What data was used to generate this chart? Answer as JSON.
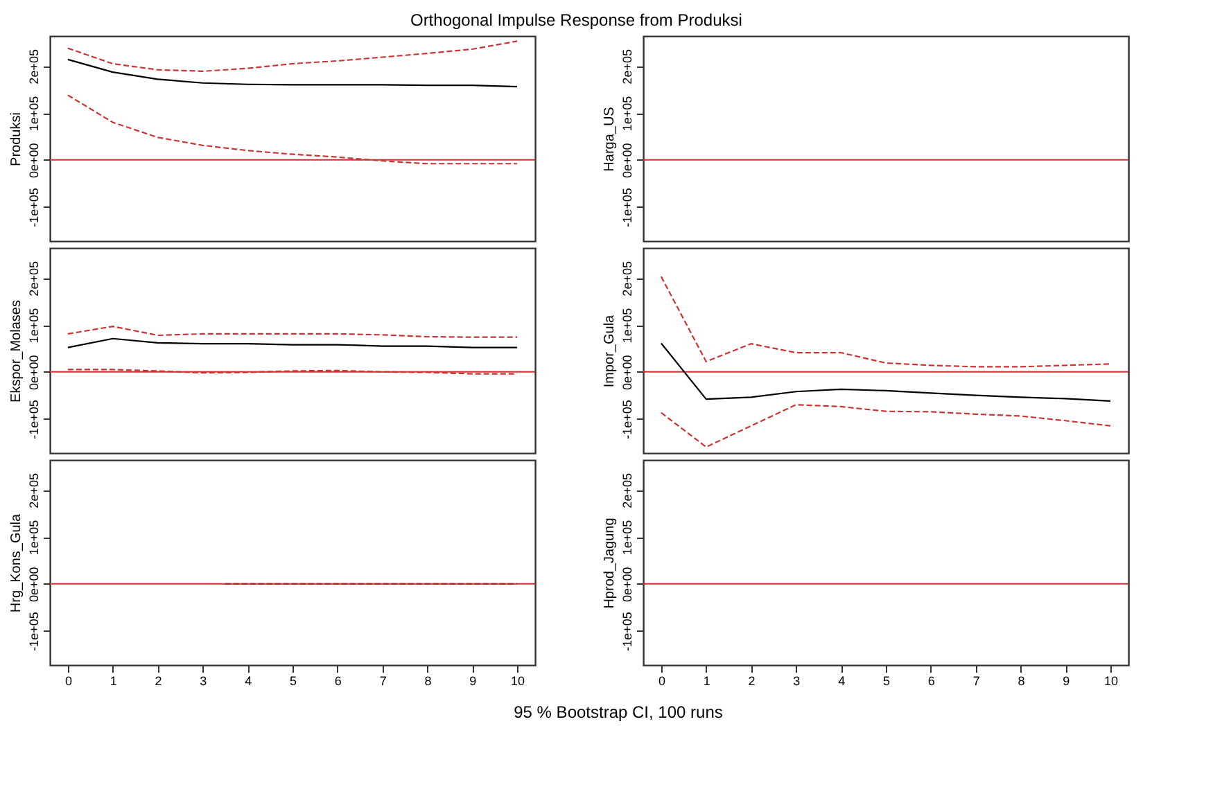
{
  "chart_data": [
    {
      "type": "line",
      "title": "Orthogonal Impulse Response from Produksi",
      "ylabel": "Produksi",
      "x": [
        0,
        1,
        2,
        3,
        4,
        5,
        6,
        7,
        8,
        9,
        10
      ],
      "xlim": [
        -0.4,
        10.4
      ],
      "xticks": [
        0,
        1,
        2,
        3,
        4,
        5,
        6,
        7,
        8,
        9,
        10
      ],
      "ylim": [
        -173000,
        264000
      ],
      "yticks": [
        {
          "value": -100000,
          "label": "-1e+05"
        },
        {
          "value": 0,
          "label": "0e+00"
        },
        {
          "value": 100000,
          "label": "1e+05"
        },
        {
          "value": 200000,
          "label": "2e+05"
        }
      ],
      "tick_labels": "y",
      "grid": false,
      "series": [
        {
          "color": "#000000",
          "line_style": "solid",
          "values": [
            214000,
            187000,
            172000,
            164000,
            161000,
            160000,
            160000,
            160000,
            159000,
            159000,
            156000
          ]
        },
        {
          "color": "#cc3333",
          "line_style": "dashed",
          "values": [
            238000,
            205000,
            192000,
            189000,
            195000,
            205000,
            211000,
            219000,
            227000,
            236000,
            253000
          ]
        },
        {
          "color": "#cc3333",
          "line_style": "dashed",
          "values": [
            138000,
            80000,
            48000,
            31000,
            20000,
            12000,
            6000,
            -2000,
            -8000,
            -8000,
            -8000
          ]
        }
      ],
      "ref_lines": [
        {
          "axis": "y",
          "value": 0,
          "color": "#cc3333"
        }
      ]
    },
    {
      "type": "line",
      "ylabel": "Harga_US",
      "xlim": [
        -0.4,
        10.4
      ],
      "xticks": [
        0,
        1,
        2,
        3,
        4,
        5,
        6,
        7,
        8,
        9,
        10
      ],
      "ylim": [
        -173000,
        264000
      ],
      "yticks": [
        {
          "value": -100000,
          "label": "-1e+05"
        },
        {
          "value": 0,
          "label": "0e+00"
        },
        {
          "value": 100000,
          "label": "1e+05"
        },
        {
          "value": 200000,
          "label": "2e+05"
        }
      ],
      "tick_labels": "y",
      "grid": false,
      "ref_lines": [
        {
          "axis": "y",
          "value": 0,
          "color": "#cc3333"
        }
      ]
    },
    {
      "type": "line",
      "ylabel": "Ekspor_Molases",
      "x": [
        0,
        1,
        2,
        3,
        4,
        5,
        6,
        7,
        8,
        9,
        10
      ],
      "xlim": [
        -0.4,
        10.4
      ],
      "xticks": [
        0,
        1,
        2,
        3,
        4,
        5,
        6,
        7,
        8,
        9,
        10
      ],
      "ylim": [
        -173000,
        264000
      ],
      "yticks": [
        {
          "value": -100000,
          "label": "-1e+05"
        },
        {
          "value": 0,
          "label": "0e+00"
        },
        {
          "value": 100000,
          "label": "1e+05"
        },
        {
          "value": 200000,
          "label": "2e+05"
        }
      ],
      "tick_labels": "y",
      "grid": false,
      "series": [
        {
          "color": "#000000",
          "line_style": "solid",
          "values": [
            52000,
            71000,
            62000,
            60000,
            60000,
            58000,
            58000,
            55000,
            55000,
            52000,
            52000
          ]
        },
        {
          "color": "#cc3333",
          "line_style": "dashed",
          "values": [
            81000,
            97000,
            78000,
            81000,
            81000,
            81000,
            81000,
            79000,
            75000,
            74000,
            74000
          ]
        },
        {
          "color": "#cc3333",
          "line_style": "dashed",
          "values": [
            5000,
            5000,
            2000,
            -2000,
            -1000,
            2000,
            3000,
            0,
            -1000,
            -4000,
            -4000
          ]
        }
      ],
      "ref_lines": [
        {
          "axis": "y",
          "value": 0,
          "color": "#cc3333"
        }
      ]
    },
    {
      "type": "line",
      "ylabel": "Impor_Gula",
      "x": [
        0,
        1,
        2,
        3,
        4,
        5,
        6,
        7,
        8,
        9,
        10
      ],
      "xlim": [
        -0.4,
        10.4
      ],
      "xticks": [
        0,
        1,
        2,
        3,
        4,
        5,
        6,
        7,
        8,
        9,
        10
      ],
      "ylim": [
        -173000,
        264000
      ],
      "yticks": [
        {
          "value": -100000,
          "label": "-1e+05"
        },
        {
          "value": 0,
          "label": "0e+00"
        },
        {
          "value": 100000,
          "label": "1e+05"
        },
        {
          "value": 200000,
          "label": "2e+05"
        }
      ],
      "tick_labels": "y",
      "grid": false,
      "series": [
        {
          "color": "#000000",
          "line_style": "solid",
          "values": [
            61000,
            -58000,
            -54000,
            -42000,
            -37000,
            -40000,
            -45000,
            -50000,
            -54000,
            -57000,
            -62000
          ]
        },
        {
          "color": "#cc3333",
          "line_style": "dashed",
          "values": [
            203000,
            22000,
            60000,
            41000,
            41000,
            19000,
            14000,
            11000,
            11000,
            14000,
            17000
          ]
        },
        {
          "color": "#cc3333",
          "line_style": "dashed",
          "values": [
            -87000,
            -160000,
            -115000,
            -70000,
            -74000,
            -84000,
            -85000,
            -90000,
            -94000,
            -104000,
            -115000
          ]
        }
      ],
      "ref_lines": [
        {
          "axis": "y",
          "value": 0,
          "color": "#cc3333"
        }
      ]
    },
    {
      "type": "line",
      "ylabel": "Hrg_Kons_Gula",
      "xlim": [
        -0.4,
        10.4
      ],
      "xticks": [
        0,
        1,
        2,
        3,
        4,
        5,
        6,
        7,
        8,
        9,
        10
      ],
      "ylim": [
        -173000,
        264000
      ],
      "yticks": [
        {
          "value": -100000,
          "label": "-1e+05"
        },
        {
          "value": 0,
          "label": "0e+00"
        },
        {
          "value": 100000,
          "label": "1e+05"
        },
        {
          "value": 200000,
          "label": "2e+05"
        }
      ],
      "grid": false,
      "series": [
        {
          "color": "#aa2222",
          "line_style": "dashed",
          "x": [
            3.5,
            10
          ],
          "values": [
            0,
            0
          ]
        }
      ],
      "ref_lines": [
        {
          "axis": "y",
          "value": 0,
          "color": "#cc3333"
        }
      ]
    },
    {
      "type": "line",
      "ylabel": "Hprod_Jagung",
      "xlim": [
        -0.4,
        10.4
      ],
      "xticks": [
        0,
        1,
        2,
        3,
        4,
        5,
        6,
        7,
        8,
        9,
        10
      ],
      "ylim": [
        -173000,
        264000
      ],
      "yticks": [
        {
          "value": -100000,
          "label": "-1e+05"
        },
        {
          "value": 0,
          "label": "0e+00"
        },
        {
          "value": 100000,
          "label": "1e+05"
        },
        {
          "value": 200000,
          "label": "2e+05"
        }
      ],
      "grid": false,
      "ref_lines": [
        {
          "axis": "y",
          "value": 0,
          "color": "#cc3333"
        }
      ],
      "annotations": [
        "95 % Bootstrap CI,  100 runs"
      ]
    }
  ]
}
